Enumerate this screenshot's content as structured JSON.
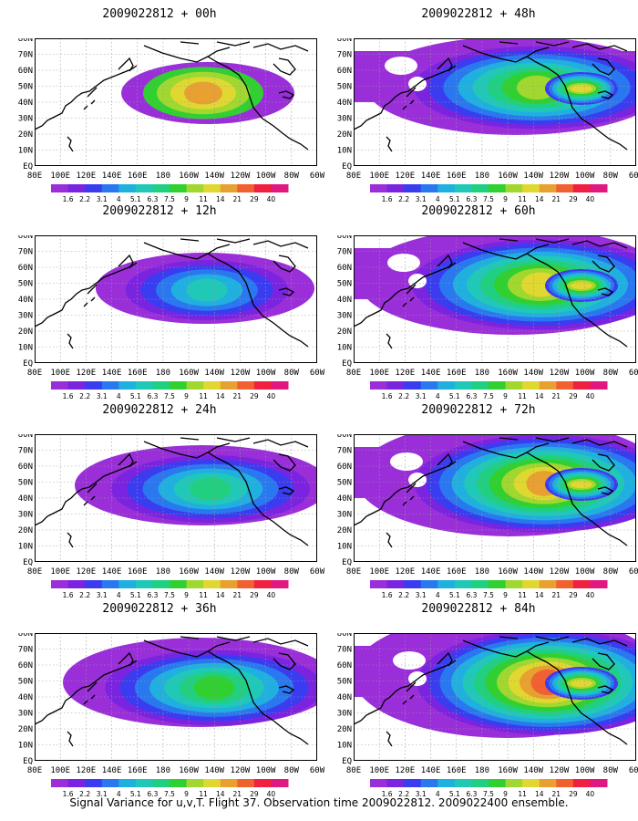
{
  "colorbar": {
    "labels": [
      "1.6",
      "2.2",
      "3.1",
      "4",
      "5.1",
      "6.3",
      "7.5",
      "9",
      "11",
      "14",
      "21",
      "29",
      "40"
    ],
    "labels_lower_right": [
      "1.6",
      "2.2",
      "3.1",
      "4",
      "5.1",
      "6.3",
      "7.5",
      "9",
      "11",
      "14",
      "21",
      "29",
      "40"
    ],
    "colors": [
      "#9a2fd9",
      "#7b24e0",
      "#3a3cf0",
      "#2a78f0",
      "#20b0e0",
      "#20c8b8",
      "#20d080",
      "#30d030",
      "#a0d830",
      "#e0d830",
      "#e8a030",
      "#f06030",
      "#f02040",
      "#e01880"
    ]
  },
  "axes": {
    "lon_ticks": [
      "80E",
      "100E",
      "120E",
      "140E",
      "160E",
      "180",
      "160W",
      "140W",
      "120W",
      "100W",
      "80W",
      "60W"
    ],
    "lat_ticks": [
      "EQ",
      "10N",
      "20N",
      "30N",
      "40N",
      "50N",
      "60N",
      "70N",
      "80N"
    ]
  },
  "panels": [
    {
      "title": "2009022812 + 00h",
      "intensity": 0
    },
    {
      "title": "2009022812 + 48h",
      "intensity": 4
    },
    {
      "title": "2009022812 + 12h",
      "intensity": 1
    },
    {
      "title": "2009022812 + 60h",
      "intensity": 5
    },
    {
      "title": "2009022812 + 24h",
      "intensity": 2
    },
    {
      "title": "2009022812 + 72h",
      "intensity": 6
    },
    {
      "title": "2009022812 + 36h",
      "intensity": 3
    },
    {
      "title": "2009022812 + 84h",
      "intensity": 7
    }
  ],
  "footer": {
    "caption": "Signal Variance for u,v,T. Flight 37. Observation time 2009022812. 2009022400 ensemble."
  }
}
